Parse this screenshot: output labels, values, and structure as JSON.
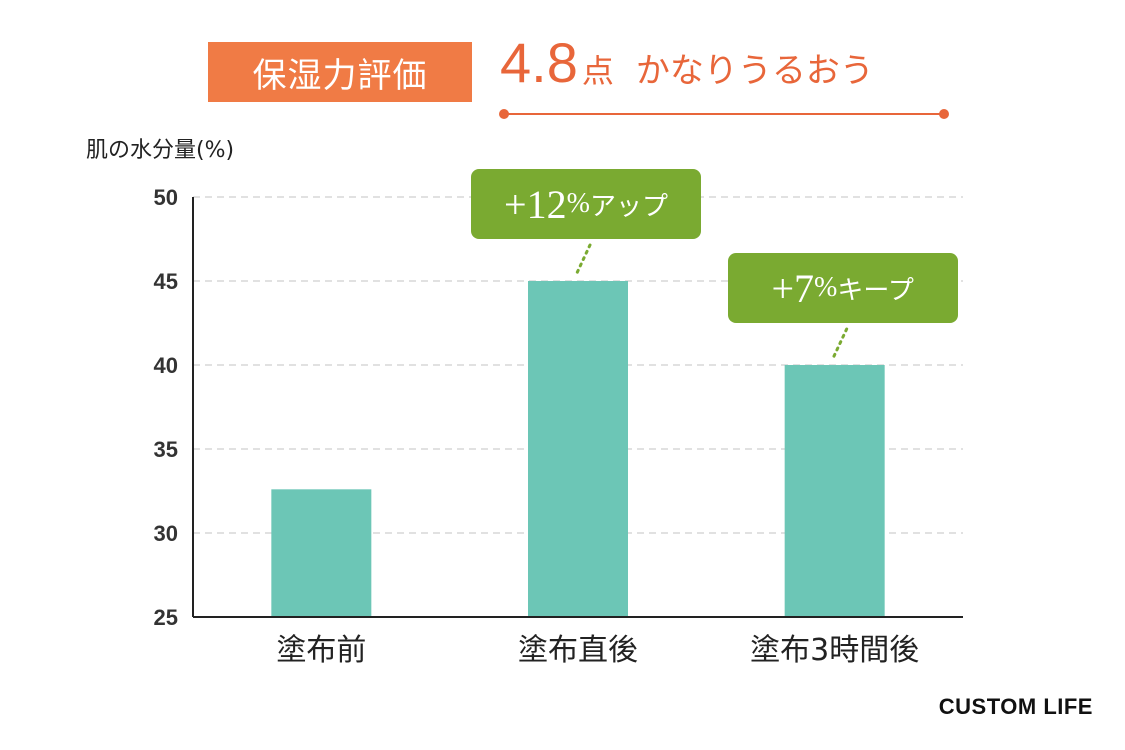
{
  "header": {
    "badge_label": "保湿力評価",
    "score": "4.8",
    "score_unit": "点",
    "score_text": "かなりうるおう"
  },
  "colors": {
    "badge": "#f07b45",
    "score_text": "#e8663a",
    "bar": "#6cc6b6",
    "callout": "#7aaa31",
    "grid": "#cfcfcf",
    "axis": "#222222"
  },
  "chart_data": {
    "type": "bar",
    "ylabel": "肌の水分量(%)",
    "categories": [
      "塗布前",
      "塗布直後",
      "塗布3時間後"
    ],
    "values": [
      32.6,
      45,
      40
    ],
    "ylim": [
      25,
      50
    ],
    "yticks": [
      25,
      30,
      35,
      40,
      45,
      50
    ],
    "grid": true,
    "annotations": [
      {
        "category": "塗布直後",
        "sign": "+",
        "value": "12",
        "unit": "%",
        "text": "アップ"
      },
      {
        "category": "塗布3時間後",
        "sign": "+",
        "value": "7",
        "unit": "%",
        "text": "キープ"
      }
    ]
  },
  "brand": "CUSTOM LIFE"
}
